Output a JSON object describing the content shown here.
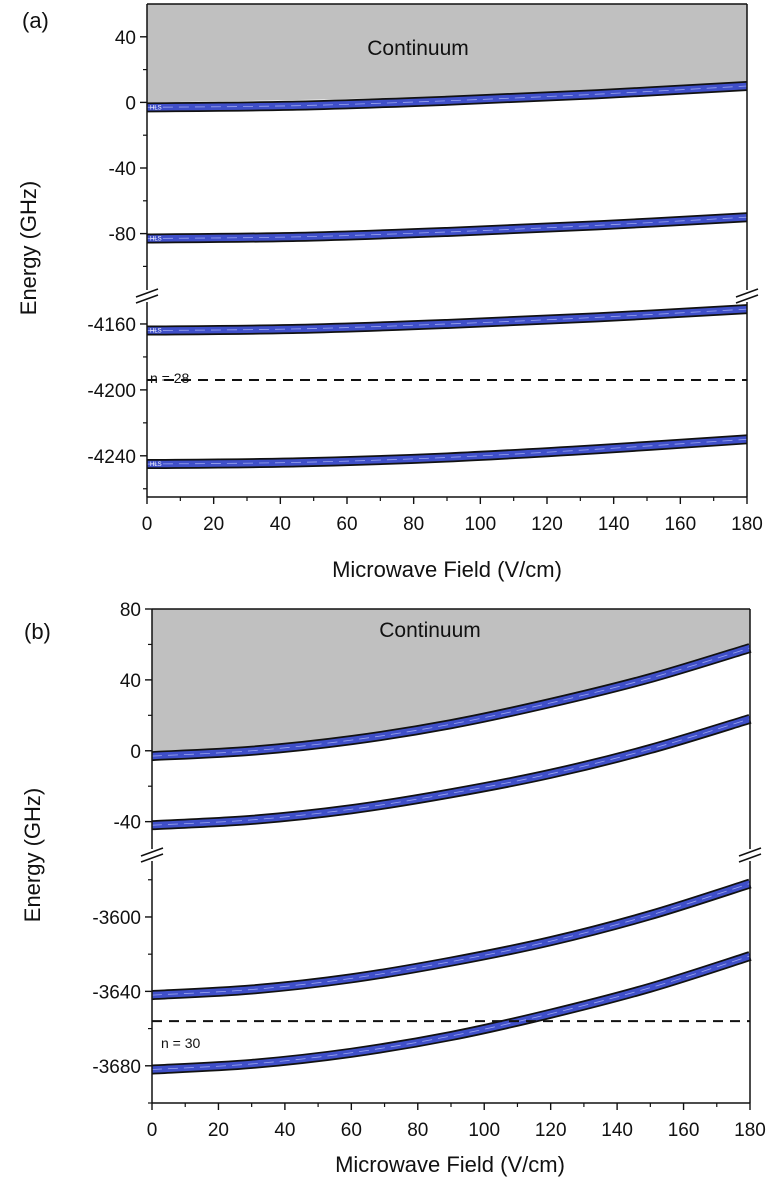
{
  "chart_data": [
    {
      "type": "line",
      "panel_label": "(a)",
      "xlabel": "Microwave Field (V/cm)",
      "ylabel": "Energy (GHz)",
      "xlim": [
        0,
        180
      ],
      "x_ticks": [
        "0",
        "20",
        "40",
        "60",
        "80",
        "100",
        "120",
        "140",
        "160",
        "180"
      ],
      "y_break": true,
      "upper_ylim": [
        -115,
        60
      ],
      "lower_ylim": [
        -4265,
        -4140
      ],
      "y_ticks_upper": [
        "40",
        "0",
        "-40",
        "-80"
      ],
      "y_ticks_lower": [
        "-4160",
        "-4200",
        "-4240"
      ],
      "continuum_label": "Continuum",
      "continuum_boundary": {
        "x": [
          0,
          45,
          90,
          135,
          180
        ],
        "y": [
          0,
          1.5,
          3.5,
          7,
          12
        ]
      },
      "series": [
        {
          "segment": "upper",
          "tag": "HLS",
          "x": [
            0,
            45,
            90,
            135,
            180
          ],
          "y": [
            -3,
            -2,
            1,
            5,
            10
          ]
        },
        {
          "segment": "upper",
          "tag": "HLS",
          "x": [
            0,
            45,
            90,
            135,
            180
          ],
          "y": [
            -83,
            -82,
            -79,
            -75,
            -70
          ]
        },
        {
          "segment": "lower",
          "tag": "HLS",
          "x": [
            0,
            45,
            90,
            135,
            180
          ],
          "y": [
            -4164,
            -4163,
            -4160,
            -4156,
            -4151
          ]
        },
        {
          "segment": "lower",
          "tag": "HLS",
          "x": [
            0,
            45,
            90,
            135,
            180
          ],
          "y": [
            -4245,
            -4244,
            -4241,
            -4236,
            -4230
          ]
        }
      ],
      "dashed_line": {
        "y": -4194,
        "label": "n = 28"
      },
      "grid": false,
      "colors": {
        "band": "#3f4fc8",
        "continuum": "#c0c0c0"
      }
    },
    {
      "type": "line",
      "panel_label": "(b)",
      "xlabel": "Microwave Field (V/cm)",
      "ylabel": "Energy (GHz)",
      "xlim": [
        0,
        180
      ],
      "x_ticks": [
        "0",
        "20",
        "40",
        "60",
        "80",
        "100",
        "120",
        "140",
        "160",
        "180"
      ],
      "y_break": true,
      "upper_ylim": [
        -56,
        80
      ],
      "lower_ylim": [
        -3700,
        -3564
      ],
      "y_ticks_upper": [
        "80",
        "40",
        "0",
        "-40"
      ],
      "y_ticks_lower": [
        "-3600",
        "-3640",
        "-3680"
      ],
      "continuum_label": "Continuum",
      "continuum_boundary": {
        "x": [
          0,
          30,
          60,
          90,
          120,
          150,
          180
        ],
        "y": [
          -2,
          1,
          7,
          16,
          28,
          42,
          59
        ]
      },
      "series": [
        {
          "segment": "upper",
          "x": [
            0,
            30,
            60,
            90,
            120,
            150,
            180
          ],
          "y": [
            -3,
            0,
            6,
            15,
            27,
            41,
            58
          ]
        },
        {
          "segment": "upper",
          "x": [
            0,
            30,
            60,
            90,
            120,
            150,
            180
          ],
          "y": [
            -42,
            -39,
            -33,
            -24,
            -13,
            1,
            18
          ]
        },
        {
          "segment": "lower",
          "x": [
            0,
            30,
            60,
            90,
            120,
            150,
            180
          ],
          "y": [
            -3642,
            -3639,
            -3633,
            -3624,
            -3613,
            -3599,
            -3582
          ]
        },
        {
          "segment": "lower",
          "x": [
            0,
            30,
            60,
            90,
            120,
            150,
            180
          ],
          "y": [
            -3682,
            -3679,
            -3673,
            -3664,
            -3652,
            -3638,
            -3621
          ]
        }
      ],
      "dashed_line": {
        "y": -3656,
        "label": "n = 30"
      },
      "grid": false,
      "colors": {
        "band": "#3f4fc8",
        "continuum": "#c0c0c0"
      }
    }
  ]
}
